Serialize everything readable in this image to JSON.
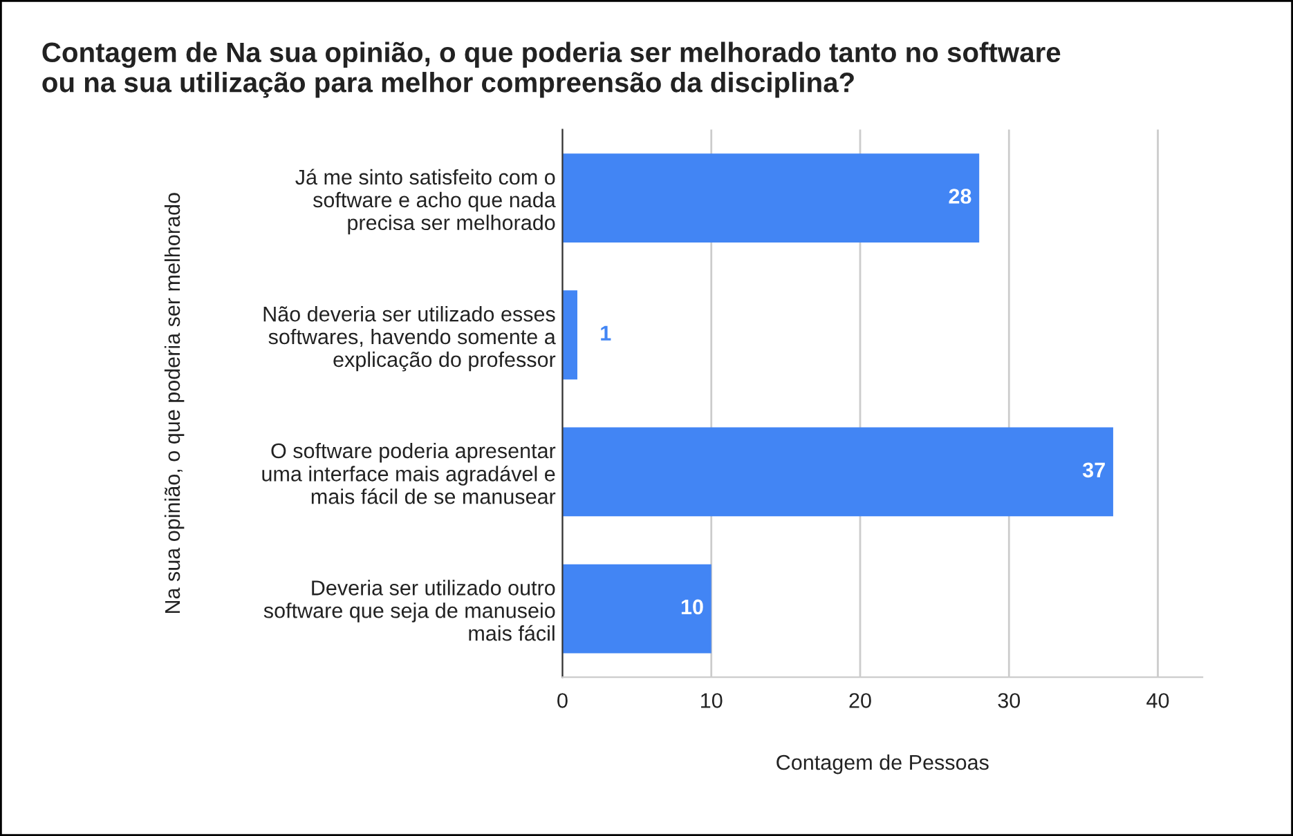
{
  "chart_data": {
    "type": "bar",
    "orientation": "horizontal",
    "title": "Contagem de Na sua opinião, o que poderia ser melhorado tanto no software\nou na sua utilização para melhor compreensão da disciplina?",
    "xlabel": "Contagem de Pessoas",
    "ylabel": "Na sua opinião, o que poderia ser melhorado",
    "categories": [
      "Já me sinto satisfeito com o\nsoftware e acho que nada\nprecisa ser melhorado",
      "Não deveria ser utilizado esses\nsoftwares, havendo somente a\nexplicação do professor",
      "O software poderia apresentar\numa interface mais agradável e\nmais fácil de se manusear",
      "Deveria ser utilizado outro\nsoftware que seja de manuseio\nmais fácil"
    ],
    "values": [
      28,
      1,
      37,
      10
    ],
    "color": "#4285f4",
    "xlim": [
      0,
      43
    ],
    "xticks": [
      0,
      10,
      20,
      30,
      40
    ],
    "grid": "x",
    "data_labels": true
  }
}
